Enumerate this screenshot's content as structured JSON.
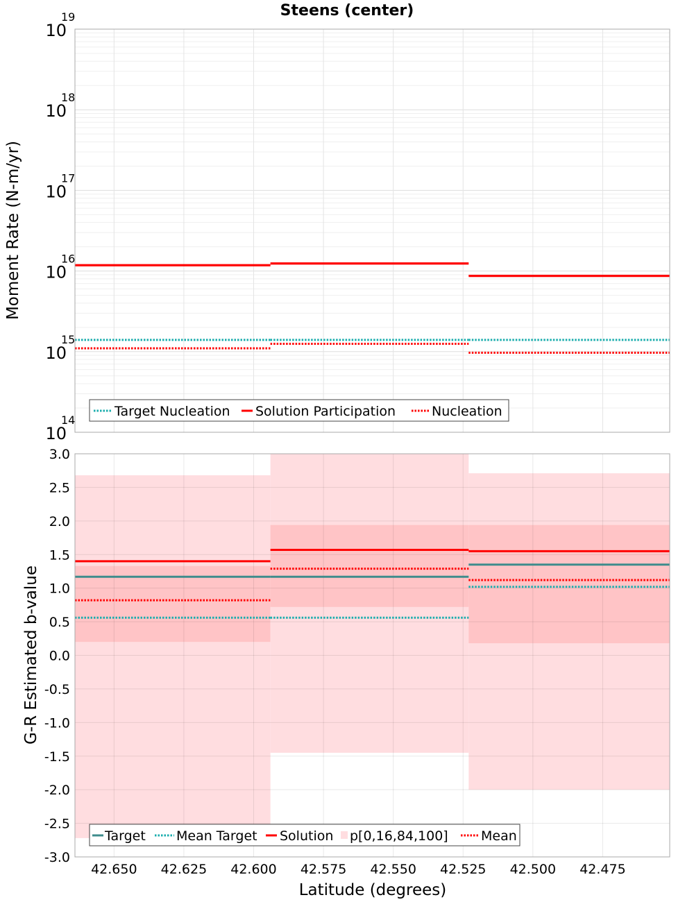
{
  "chart_data": [
    {
      "type": "line",
      "title": "Steens (center)",
      "xlabel": "",
      "ylabel": "Moment Rate (N-m/yr)",
      "x_reversed": true,
      "xlim": [
        42.664,
        42.451
      ],
      "ylim": [
        100000000000000.0,
        1e+19
      ],
      "y_scale": "log",
      "grid": true,
      "legend_position": "bottom-left",
      "y_ticks": [
        {
          "base": "10",
          "exp": "14",
          "value": 100000000000000.0
        },
        {
          "base": "10",
          "exp": "15",
          "value": 1000000000000000.0
        },
        {
          "base": "10",
          "exp": "16",
          "value": 1e+16
        },
        {
          "base": "10",
          "exp": "17",
          "value": 1e+17
        },
        {
          "base": "10",
          "exp": "18",
          "value": 1e+18
        },
        {
          "base": "10",
          "exp": "19",
          "value": 1e+19
        }
      ],
      "x_ticks": [
        42.65,
        42.625,
        42.6,
        42.575,
        42.55,
        42.525,
        42.5,
        42.475
      ],
      "legend": [
        "Target Nucleation",
        "Solution Participation",
        "Nucleation"
      ],
      "series": [
        {
          "name": "Target Nucleation",
          "color": "#1aadad",
          "style": "dotted",
          "segments": [
            {
              "x": [
                42.664,
                42.594
              ],
              "y": 1400000000000000.0
            },
            {
              "x": [
                42.594,
                42.523
              ],
              "y": 1400000000000000.0
            },
            {
              "x": [
                42.523,
                42.451
              ],
              "y": 1400000000000000.0
            }
          ]
        },
        {
          "name": "Solution Participation",
          "color": "#ff0000",
          "style": "solid",
          "segments": [
            {
              "x": [
                42.664,
                42.594
              ],
              "y": 1.18e+16
            },
            {
              "x": [
                42.594,
                42.523
              ],
              "y": 1.24e+16
            },
            {
              "x": [
                42.523,
                42.451
              ],
              "y": 8700000000000000.0
            }
          ]
        },
        {
          "name": "Nucleation",
          "color": "#ff0000",
          "style": "dotted",
          "segments": [
            {
              "x": [
                42.664,
                42.594
              ],
              "y": 1100000000000000.0
            },
            {
              "x": [
                42.594,
                42.523
              ],
              "y": 1250000000000000.0
            },
            {
              "x": [
                42.523,
                42.451
              ],
              "y": 970000000000000.0
            }
          ]
        }
      ]
    },
    {
      "type": "line",
      "title": "",
      "xlabel": "Latitude (degrees)",
      "ylabel": "G-R Estimated b-value",
      "x_reversed": true,
      "xlim": [
        42.664,
        42.451
      ],
      "ylim": [
        -3.0,
        3.0
      ],
      "grid": true,
      "legend_position": "bottom-left",
      "y_ticks": [
        "-3.0",
        "-2.5",
        "-2.0",
        "-1.5",
        "-1.0",
        "-0.5",
        "0.0",
        "0.5",
        "1.0",
        "1.5",
        "2.0",
        "2.5",
        "3.0"
      ],
      "x_ticks": [
        "42.650",
        "42.625",
        "42.600",
        "42.575",
        "42.550",
        "42.525",
        "42.500",
        "42.475"
      ],
      "legend": [
        "Target",
        "Mean Target",
        "Solution",
        "p[0,16,84,100]",
        "Mean"
      ],
      "bands": [
        {
          "x": [
            42.664,
            42.594
          ],
          "p0": -2.72,
          "p16": 0.2,
          "p84": 1.33,
          "p100": 2.68
        },
        {
          "x": [
            42.594,
            42.523
          ],
          "p0": -1.45,
          "p16": 0.72,
          "p84": 1.94,
          "p100": 3.0
        },
        {
          "x": [
            42.523,
            42.451
          ],
          "p0": -2.0,
          "p16": 0.18,
          "p84": 1.94,
          "p100": 2.71
        }
      ],
      "series": [
        {
          "name": "Solution",
          "color": "#ff0000",
          "style": "solid",
          "segments": [
            {
              "x": [
                42.664,
                42.594
              ],
              "y": 1.4
            },
            {
              "x": [
                42.594,
                42.523
              ],
              "y": 1.57
            },
            {
              "x": [
                42.523,
                42.451
              ],
              "y": 1.55
            }
          ]
        },
        {
          "name": "Target",
          "color": "#3e8c8c",
          "style": "solid",
          "segments": [
            {
              "x": [
                42.664,
                42.594
              ],
              "y": 1.17
            },
            {
              "x": [
                42.594,
                42.523
              ],
              "y": 1.17
            },
            {
              "x": [
                42.523,
                42.451
              ],
              "y": 1.35
            }
          ]
        },
        {
          "name": "Mean",
          "color": "#ff0000",
          "style": "dotted",
          "segments": [
            {
              "x": [
                42.664,
                42.594
              ],
              "y": 0.82
            },
            {
              "x": [
                42.594,
                42.523
              ],
              "y": 1.29
            },
            {
              "x": [
                42.523,
                42.451
              ],
              "y": 1.12
            }
          ]
        },
        {
          "name": "Mean Target",
          "color": "#1aadad",
          "style": "dotted",
          "segments": [
            {
              "x": [
                42.664,
                42.594
              ],
              "y": 0.56
            },
            {
              "x": [
                42.594,
                42.523
              ],
              "y": 0.56
            },
            {
              "x": [
                42.523,
                42.451
              ],
              "y": 1.02
            }
          ]
        }
      ]
    }
  ]
}
